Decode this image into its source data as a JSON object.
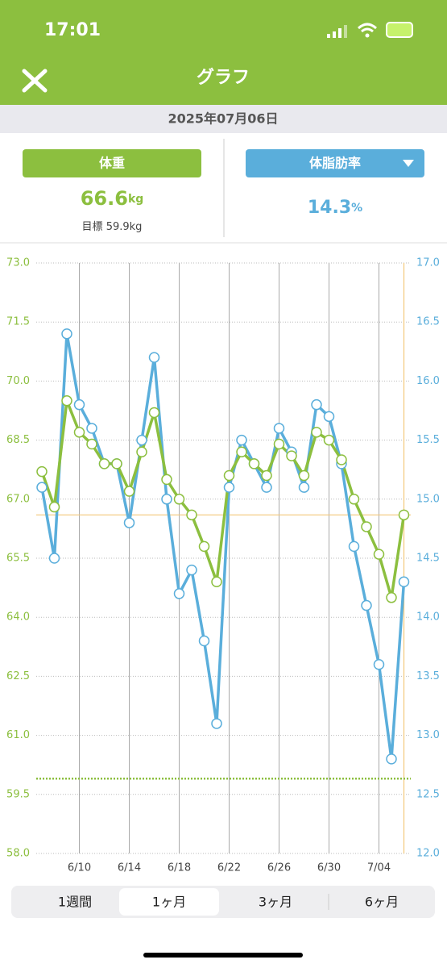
{
  "status": {
    "time": "17:01"
  },
  "header": {
    "title": "グラフ"
  },
  "date": "2025年07月06日",
  "weight": {
    "label": "体重",
    "value": 66.6,
    "unit": "kg"
  },
  "goal": {
    "label": "目標",
    "value": 59.9,
    "unit": "kg"
  },
  "bodyfat": {
    "label": "体脂肪率",
    "value": 14.3,
    "unit": "%"
  },
  "tabs": [
    "1週間",
    "1ヶ月",
    "3ヶ月",
    "6ヶ月"
  ],
  "chart_data": {
    "type": "line",
    "categories": [
      null,
      null,
      null,
      "6/10",
      null,
      null,
      null,
      "6/14",
      null,
      null,
      null,
      "6/18",
      null,
      null,
      null,
      "6/22",
      null,
      null,
      null,
      "6/26",
      null,
      null,
      null,
      "6/30",
      null,
      null,
      null,
      "7/04",
      null,
      null
    ],
    "series": [
      {
        "name": "体重",
        "color": "#8cbf3f",
        "values": [
          67.7,
          66.8,
          69.5,
          68.7,
          68.4,
          67.9,
          67.9,
          67.2,
          68.2,
          69.2,
          67.5,
          67.0,
          66.6,
          65.8,
          64.9,
          67.6,
          68.2,
          67.9,
          67.6,
          68.4,
          68.1,
          67.6,
          68.7,
          68.5,
          68.0,
          67.0,
          66.3,
          65.6,
          64.5,
          66.6
        ]
      },
      {
        "name": "体脂肪率",
        "color": "#5aaedb",
        "axis": "y2",
        "values": [
          15.1,
          14.5,
          16.4,
          15.8,
          15.6,
          15.3,
          15.3,
          14.8,
          15.5,
          16.2,
          15.0,
          14.2,
          14.4,
          13.8,
          13.1,
          15.1,
          15.5,
          15.3,
          15.1,
          15.6,
          15.4,
          15.1,
          15.8,
          15.7,
          15.3,
          14.6,
          14.1,
          13.6,
          12.8,
          14.3
        ]
      }
    ],
    "ylim": [
      58,
      73
    ],
    "yticks": [
      {
        "value": 58,
        "label": "58.0"
      },
      59.5,
      {
        "value": 61,
        "label": "61.0"
      },
      62.5,
      {
        "value": 64,
        "label": "64.0"
      },
      65.5,
      {
        "value": 67,
        "label": "67.0"
      },
      68.5,
      {
        "value": 70,
        "label": "70.0"
      },
      71.5,
      {
        "value": 73,
        "label": "73.0"
      }
    ],
    "y2lim": [
      12,
      17
    ],
    "y2ticks": [
      {
        "value": 12,
        "label": "12.0"
      },
      12.5,
      {
        "value": 13,
        "label": "13.0"
      },
      13.5,
      {
        "value": 14,
        "label": "14.0"
      },
      14.5,
      {
        "value": 15,
        "label": "15.0"
      },
      15.5,
      {
        "value": 16,
        "label": "16.0"
      },
      16.5,
      {
        "value": 17,
        "label": "17.0"
      }
    ],
    "grid": true
  }
}
